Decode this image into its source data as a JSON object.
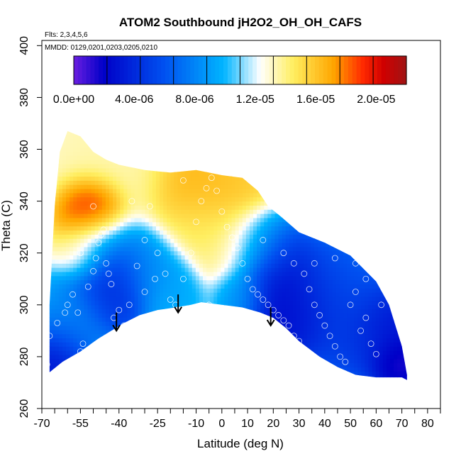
{
  "chart_data": {
    "type": "heatmap",
    "title": "ATOM2 Southbound jH2O2_OH_OH_CAFS",
    "annotations": {
      "flights": "Flts: 2,3,4,5,6",
      "dates": "MMDD: 0129,0201,0203,0205,0210"
    },
    "xlabel": "Latitude (deg N)",
    "ylabel": "Theta (C)",
    "xlim": [
      -70,
      85
    ],
    "ylim": [
      260,
      402
    ],
    "x_ticks": [
      -70,
      -55,
      -40,
      -25,
      -10,
      0,
      10,
      20,
      30,
      40,
      50,
      60,
      70,
      80
    ],
    "x_tick_labels": [
      "-70",
      "-55",
      "-40",
      "-25",
      "-10",
      "0",
      "10",
      "20",
      "30",
      "40",
      "50",
      "60",
      "70",
      "80"
    ],
    "x_minor_ticks": [
      -65,
      -60,
      -50,
      -45,
      -35,
      -30,
      -20,
      -15,
      -5,
      5,
      15,
      25,
      35,
      45,
      55,
      65,
      75,
      85
    ],
    "y_ticks": [
      260,
      280,
      300,
      320,
      340,
      360,
      380,
      400
    ],
    "y_tick_labels": [
      "260",
      "280",
      "300",
      "320",
      "340",
      "360",
      "380",
      "400"
    ],
    "colorbar": {
      "range": [
        0.0,
        2.2e-05
      ],
      "tick_values": [
        0.0,
        4e-06,
        8e-06,
        1.2e-05,
        1.6e-05,
        2e-05
      ],
      "tick_labels": [
        "0.0e+00",
        "4.0e-06",
        "8.0e-06",
        "1.2e-05",
        "1.6e-05",
        "2.0e-05"
      ],
      "colors": [
        "#6a1ee0",
        "#0000c8",
        "#0050f0",
        "#00b4ff",
        "#ffffff",
        "#ffee60",
        "#ffa600",
        "#ff2800",
        "#d00000",
        "#a01414"
      ],
      "positions": [
        0.0,
        0.09,
        0.27,
        0.45,
        0.56,
        0.66,
        0.78,
        0.87,
        0.93,
        1.0
      ]
    },
    "profile_top": [
      [
        -67,
        300
      ],
      [
        -65,
        338
      ],
      [
        -63,
        359
      ],
      [
        -60,
        367
      ],
      [
        -55,
        365
      ],
      [
        -50,
        359
      ],
      [
        -45,
        356
      ],
      [
        -40,
        354
      ],
      [
        -30,
        352
      ],
      [
        -20,
        351
      ],
      [
        -10,
        352
      ],
      [
        0,
        350
      ],
      [
        8,
        349
      ],
      [
        14,
        344
      ],
      [
        18,
        338
      ],
      [
        23,
        334
      ],
      [
        30,
        328
      ],
      [
        40,
        324
      ],
      [
        50,
        319
      ],
      [
        60,
        309
      ],
      [
        65,
        300
      ],
      [
        70,
        284
      ],
      [
        72,
        273
      ]
    ],
    "profile_bottom": [
      [
        -67,
        274
      ],
      [
        -62,
        278
      ],
      [
        -55,
        282
      ],
      [
        -48,
        287
      ],
      [
        -43,
        290
      ],
      [
        -38,
        293
      ],
      [
        -32,
        296
      ],
      [
        -25,
        298
      ],
      [
        -18,
        299
      ],
      [
        -12,
        300
      ],
      [
        -8,
        301
      ],
      [
        0,
        300
      ],
      [
        8,
        299
      ],
      [
        15,
        297
      ],
      [
        20,
        295
      ],
      [
        25,
        291
      ],
      [
        30,
        286
      ],
      [
        38,
        280
      ],
      [
        45,
        276
      ],
      [
        52,
        273
      ],
      [
        60,
        272
      ],
      [
        70,
        272
      ],
      [
        72,
        271
      ]
    ],
    "field_blobs": [
      {
        "lat": -50,
        "theta": 337,
        "v": 2.1e-05,
        "r": 5
      },
      {
        "lat": -51,
        "theta": 332,
        "v": 1.9e-05,
        "r": 6
      },
      {
        "lat": -55,
        "theta": 318,
        "v": 1.5e-05,
        "r": 5
      },
      {
        "lat": -46,
        "theta": 324,
        "v": 7e-06,
        "r": 6
      },
      {
        "lat": -45,
        "theta": 310,
        "v": 4e-06,
        "r": 7
      },
      {
        "lat": -43,
        "theta": 304,
        "v": 3.5e-06,
        "r": 7
      },
      {
        "lat": -32,
        "theta": 315,
        "v": 8e-06,
        "r": 7
      },
      {
        "lat": -58,
        "theta": 298,
        "v": 8.5e-06,
        "r": 7
      },
      {
        "lat": -62,
        "theta": 287,
        "v": 6e-06,
        "r": 6
      },
      {
        "lat": -66,
        "theta": 278,
        "v": 2e-06,
        "r": 5
      },
      {
        "lat": -25,
        "theta": 308,
        "v": 9e-06,
        "r": 6
      },
      {
        "lat": -12,
        "theta": 345,
        "v": 1.7e-05,
        "r": 8
      },
      {
        "lat": 0,
        "theta": 346,
        "v": 1.6e-05,
        "r": 8
      },
      {
        "lat": -10,
        "theta": 330,
        "v": 1.45e-05,
        "r": 7
      },
      {
        "lat": -40,
        "theta": 350,
        "v": 1.35e-05,
        "r": 10
      },
      {
        "lat": 5,
        "theta": 322,
        "v": 1.4e-05,
        "r": 7
      },
      {
        "lat": 14,
        "theta": 322,
        "v": 9e-06,
        "r": 6
      },
      {
        "lat": 20,
        "theta": 318,
        "v": 4e-06,
        "r": 6
      },
      {
        "lat": 22,
        "theta": 308,
        "v": 2e-06,
        "r": 7
      },
      {
        "lat": 27,
        "theta": 296,
        "v": 1.5e-06,
        "r": 8
      },
      {
        "lat": 35,
        "theta": 302,
        "v": 4e-06,
        "r": 9
      },
      {
        "lat": 45,
        "theta": 306,
        "v": 6e-06,
        "r": 9
      },
      {
        "lat": 50,
        "theta": 288,
        "v": 5e-06,
        "r": 8
      },
      {
        "lat": 62,
        "theta": 290,
        "v": 2e-06,
        "r": 8
      },
      {
        "lat": 68,
        "theta": 277,
        "v": 5e-07,
        "r": 5
      },
      {
        "lat": -20,
        "theta": 300,
        "v": 9.5e-06,
        "r": 5
      },
      {
        "lat": 8,
        "theta": 303,
        "v": 9e-06,
        "r": 5
      }
    ],
    "field_background": 1.3e-05,
    "field_default_low": 1e-05,
    "observations": [
      [
        -68,
        277
      ],
      [
        -67,
        288
      ],
      [
        -64,
        293
      ],
      [
        -61,
        297
      ],
      [
        -60,
        300
      ],
      [
        -58,
        304
      ],
      [
        -55,
        282
      ],
      [
        -54,
        285
      ],
      [
        -56,
        297
      ],
      [
        -52,
        307
      ],
      [
        -50,
        313
      ],
      [
        -49,
        318
      ],
      [
        -48,
        324
      ],
      [
        -47,
        327
      ],
      [
        -46,
        329
      ],
      [
        -45,
        316
      ],
      [
        -44,
        312
      ],
      [
        -43,
        308
      ],
      [
        -42,
        295
      ],
      [
        -40,
        298
      ],
      [
        -38,
        292
      ],
      [
        -36,
        300
      ],
      [
        -33,
        315
      ],
      [
        -30,
        325
      ],
      [
        -28,
        338
      ],
      [
        -25,
        320
      ],
      [
        -22,
        312
      ],
      [
        -20,
        302
      ],
      [
        -18,
        300
      ],
      [
        -15,
        310
      ],
      [
        -12,
        320
      ],
      [
        -10,
        332
      ],
      [
        -8,
        340
      ],
      [
        -6,
        345
      ],
      [
        -4,
        349
      ],
      [
        -2,
        344
      ],
      [
        0,
        336
      ],
      [
        2,
        330
      ],
      [
        4,
        326
      ],
      [
        6,
        322
      ],
      [
        8,
        316
      ],
      [
        10,
        310
      ],
      [
        12,
        306
      ],
      [
        14,
        304
      ],
      [
        16,
        302
      ],
      [
        18,
        300
      ],
      [
        20,
        298
      ],
      [
        22,
        296
      ],
      [
        24,
        294
      ],
      [
        26,
        292
      ],
      [
        28,
        288
      ],
      [
        30,
        286
      ],
      [
        32,
        312
      ],
      [
        34,
        306
      ],
      [
        36,
        300
      ],
      [
        38,
        296
      ],
      [
        40,
        292
      ],
      [
        42,
        288
      ],
      [
        44,
        284
      ],
      [
        46,
        280
      ],
      [
        48,
        278
      ],
      [
        50,
        300
      ],
      [
        52,
        305
      ],
      [
        54,
        290
      ],
      [
        56,
        295
      ],
      [
        58,
        285
      ],
      [
        60,
        281
      ],
      [
        62,
        300
      ],
      [
        -50,
        338
      ],
      [
        -35,
        340
      ],
      [
        -15,
        348
      ],
      [
        -55,
        320
      ],
      [
        16,
        325
      ],
      [
        24,
        320
      ],
      [
        28,
        316
      ],
      [
        36,
        316
      ],
      [
        44,
        318
      ],
      [
        52,
        316
      ],
      [
        -30,
        305
      ],
      [
        -26,
        310
      ],
      [
        10,
        290
      ],
      [
        4,
        296
      ],
      [
        -5,
        300
      ],
      [
        56,
        310
      ]
    ],
    "arrows": [
      {
        "lat": -41,
        "from": 297,
        "to": 290
      },
      {
        "lat": -17,
        "from": 304,
        "to": 297
      },
      {
        "lat": 19,
        "from": 299,
        "to": 292
      }
    ]
  }
}
